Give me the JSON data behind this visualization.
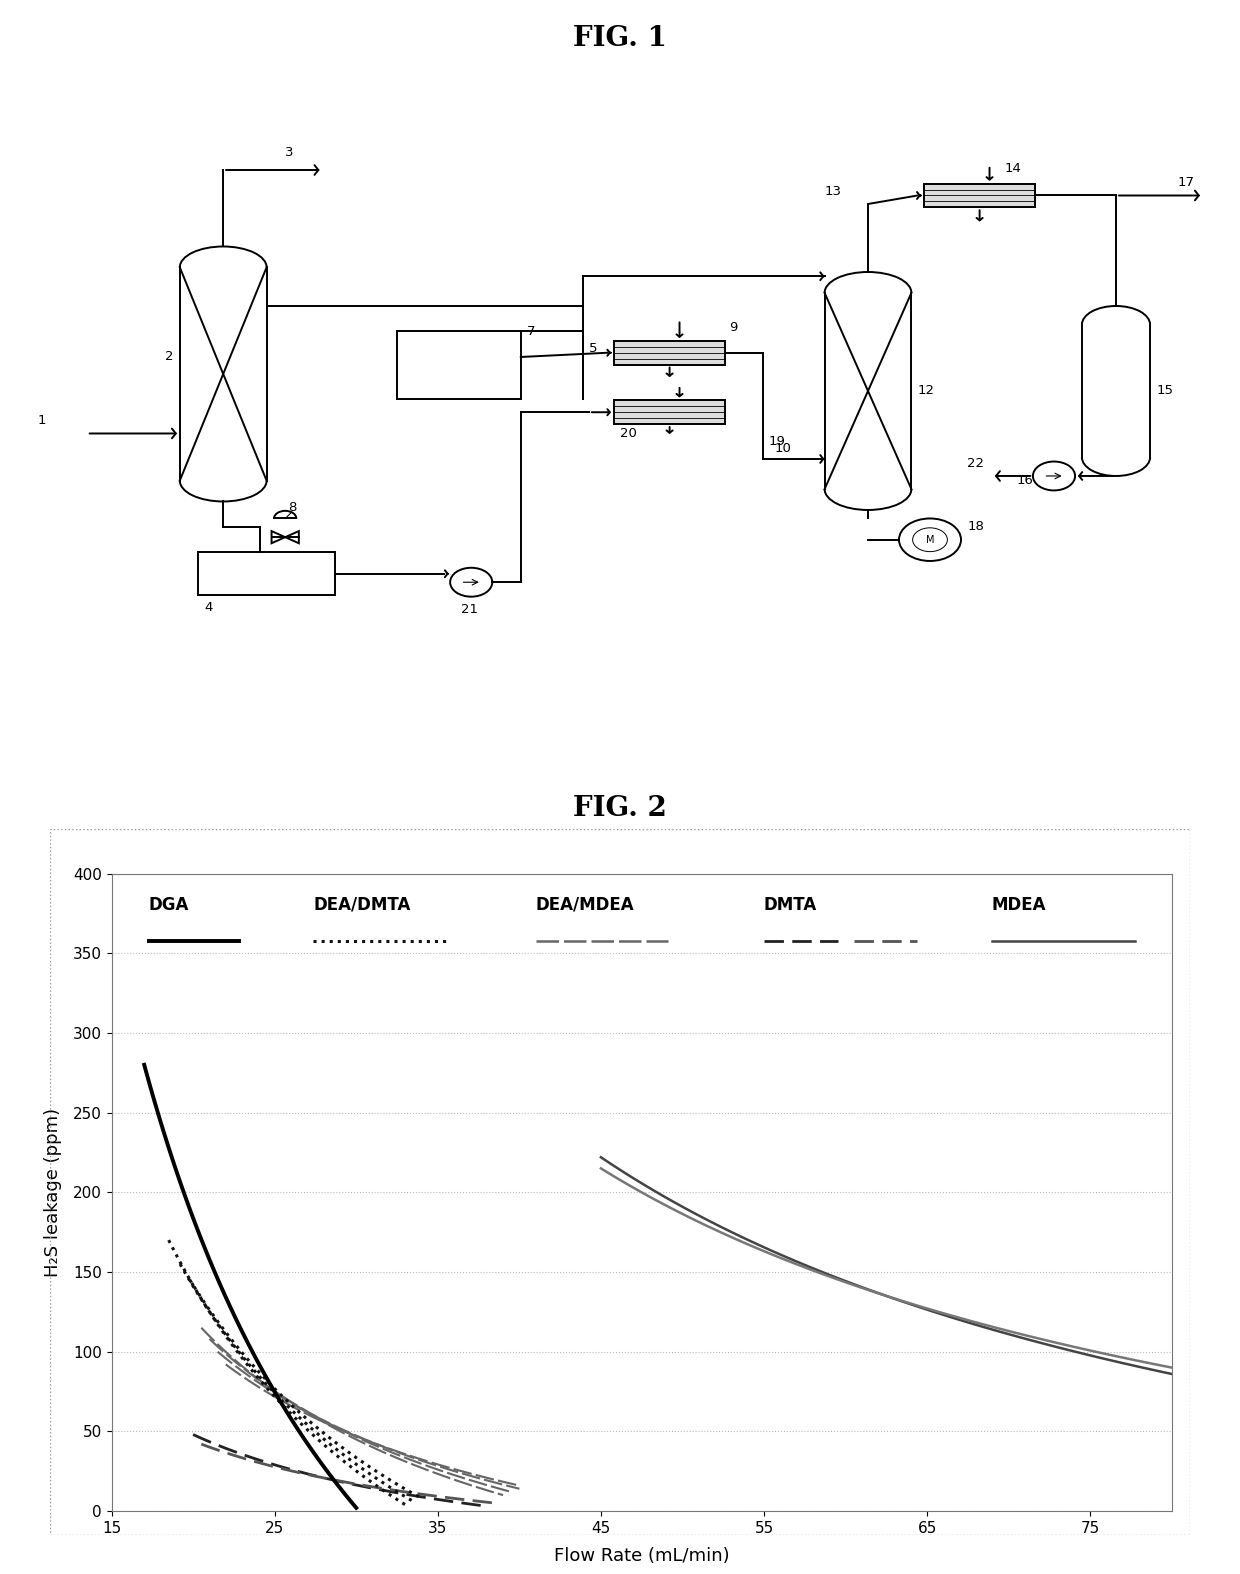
{
  "fig1_title": "FIG. 1",
  "fig2_title": "FIG. 2",
  "fig2_xlabel": "Flow Rate (mL/min)",
  "fig2_ylabel": "H₂S leakage (ppm)",
  "fig2_xlim": [
    15,
    80
  ],
  "fig2_ylim": [
    0,
    400
  ],
  "fig2_xticks": [
    15,
    25,
    35,
    45,
    55,
    65,
    75
  ],
  "fig2_yticks": [
    0,
    50,
    100,
    150,
    200,
    250,
    300,
    350,
    400
  ],
  "legend_labels": [
    "DGA",
    "DEA/DMTA",
    "DEA/MDEA",
    "DMTA",
    "MDEA"
  ],
  "bg_color": "#ffffff",
  "line_color": "#000000",
  "grid_color": "#bbbbbb"
}
